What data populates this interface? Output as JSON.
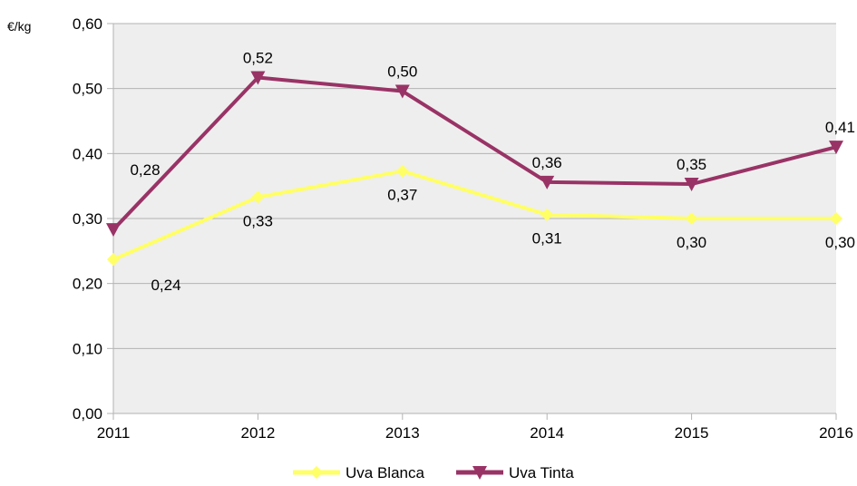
{
  "chart_data": {
    "type": "line",
    "unit_label": "€/kg",
    "categories": [
      "2011",
      "2012",
      "2013",
      "2014",
      "2015",
      "2016"
    ],
    "y_tick_labels": [
      "0,00",
      "0,10",
      "0,20",
      "0,30",
      "0,40",
      "0,50",
      "0,60"
    ],
    "ylim": [
      0,
      0.6
    ],
    "grid": "horizontal",
    "legend_position": "bottom",
    "series": [
      {
        "name": "Uva Blanca",
        "values": [
          0.237,
          0.333,
          0.373,
          0.306,
          0.3,
          0.3
        ],
        "labels": [
          "0,24",
          "0,33",
          "0,37",
          "0,31",
          "0,30",
          "0,30"
        ],
        "color": "#ffff66",
        "marker": "diamond"
      },
      {
        "name": "Uva Tinta",
        "values": [
          0.283,
          0.517,
          0.496,
          0.356,
          0.353,
          0.41
        ],
        "labels": [
          "0,28",
          "0,52",
          "0,50",
          "0,36",
          "0,35",
          "0,41"
        ],
        "color": "#993366",
        "marker": "triangle-down"
      }
    ]
  },
  "colors": {
    "plot_background": "#eeeeee",
    "grid": "#b3b3b3"
  }
}
